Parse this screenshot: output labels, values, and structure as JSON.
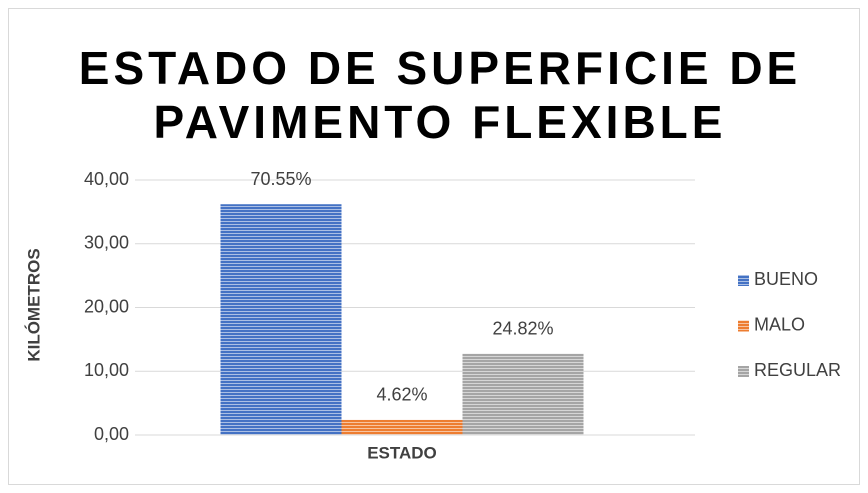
{
  "chart_data": {
    "type": "bar",
    "title": [
      "ESTADO DE SUPERFICIE DE",
      "PAVIMENTO FLEXIBLE"
    ],
    "y_label": "KILÓMETROS",
    "categories": [
      "ESTADO"
    ],
    "series": [
      {
        "name": "BUENO",
        "color": "#4472c4",
        "values": [
          36.2
        ]
      },
      {
        "name": "MALO",
        "color": "#ed7d31",
        "values": [
          2.37
        ]
      },
      {
        "name": "REGULAR",
        "color": "#a5a5a5",
        "values": [
          12.74
        ]
      }
    ],
    "annotations": [
      "70.55%",
      "4.62%",
      "24.82%"
    ],
    "ylim": [
      0,
      40
    ],
    "yticks": [
      {
        "value": 0,
        "label": "0,00"
      },
      {
        "value": 10,
        "label": "10,00"
      },
      {
        "value": 20,
        "label": "20,00"
      },
      {
        "value": 30,
        "label": "30,00"
      },
      {
        "value": 40,
        "label": "40,00"
      }
    ],
    "grid": true,
    "legend": "right"
  }
}
